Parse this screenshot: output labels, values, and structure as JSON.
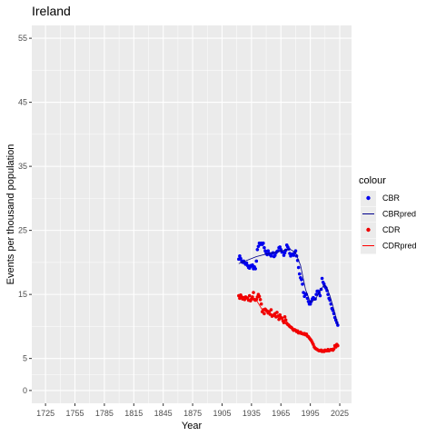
{
  "chart_data": {
    "type": "scatter",
    "title": "Ireland",
    "xlabel": "Year",
    "ylabel": "Events per thousand population",
    "xlim": [
      1711,
      2037
    ],
    "ylim": [
      -2,
      57
    ],
    "xticks": [
      1725,
      1755,
      1785,
      1815,
      1845,
      1875,
      1905,
      1935,
      1965,
      1995,
      2025
    ],
    "yticks": [
      0,
      5,
      15,
      25,
      35,
      45,
      55
    ],
    "grid": true,
    "legend": {
      "title": "colour",
      "position": "right",
      "entries": [
        "CBR",
        "CBRpred",
        "CDR",
        "CDRpred"
      ]
    },
    "series": [
      {
        "name": "CBR",
        "kind": "points",
        "color": "#0000ee",
        "x": [
          1922,
          1923,
          1924,
          1925,
          1926,
          1927,
          1928,
          1929,
          1930,
          1931,
          1932,
          1933,
          1934,
          1935,
          1936,
          1937,
          1938,
          1939,
          1940,
          1941,
          1942,
          1943,
          1944,
          1945,
          1946,
          1947,
          1948,
          1949,
          1950,
          1951,
          1952,
          1953,
          1954,
          1955,
          1956,
          1957,
          1958,
          1959,
          1960,
          1961,
          1962,
          1963,
          1964,
          1965,
          1966,
          1967,
          1968,
          1969,
          1970,
          1971,
          1972,
          1973,
          1974,
          1975,
          1976,
          1977,
          1978,
          1979,
          1980,
          1981,
          1982,
          1983,
          1984,
          1985,
          1986,
          1987,
          1988,
          1989,
          1990,
          1991,
          1992,
          1993,
          1994,
          1995,
          1996,
          1997,
          1998,
          1999,
          2000,
          2001,
          2002,
          2003,
          2004,
          2005,
          2006,
          2007,
          2008,
          2009,
          2010,
          2011,
          2012,
          2013,
          2014,
          2015,
          2016,
          2017,
          2018,
          2019,
          2020,
          2021,
          2022,
          2023
        ],
        "y": [
          20.5,
          21.0,
          20.6,
          20.2,
          20.0,
          20.2,
          19.9,
          19.7,
          19.9,
          19.5,
          19.2,
          19.1,
          19.5,
          19.4,
          19.6,
          19.0,
          19.3,
          19.0,
          20.2,
          22.0,
          22.5,
          23.0,
          22.8,
          23.0,
          22.8,
          23.0,
          22.3,
          21.8,
          21.4,
          21.2,
          21.8,
          21.4,
          21.2,
          21.0,
          21.4,
          21.5,
          20.9,
          21.1,
          21.5,
          21.7,
          21.8,
          22.3,
          22.4,
          22.0,
          21.6,
          21.6,
          21.1,
          21.5,
          21.9,
          22.7,
          22.4,
          22.1,
          21.4,
          21.0,
          21.2,
          21.3,
          21.1,
          21.5,
          21.8,
          21.0,
          20.3,
          19.2,
          18.2,
          17.6,
          17.3,
          16.6,
          15.3,
          14.7,
          15.1,
          15.0,
          14.4,
          13.9,
          13.5,
          13.5,
          13.9,
          14.3,
          14.5,
          14.3,
          14.3,
          15.0,
          15.5,
          15.5,
          15.2,
          14.8,
          15.8,
          17.5,
          16.9,
          16.6,
          16.2,
          16.0,
          15.6,
          15.0,
          14.4,
          14.1,
          13.5,
          12.8,
          12.5,
          12.0,
          11.4,
          11.0,
          10.6,
          10.2
        ]
      },
      {
        "name": "CBRpred",
        "kind": "line",
        "color": "#00008b",
        "x": [
          1922,
          1930,
          1940,
          1950,
          1960,
          1966,
          1970,
          1975,
          1980,
          1985,
          1990,
          1995,
          2000,
          2003,
          2006,
          2009,
          2012,
          2015,
          2018,
          2021,
          2023
        ],
        "y": [
          19.8,
          20.3,
          20.9,
          21.3,
          21.6,
          21.8,
          22.0,
          22.0,
          21.5,
          19.5,
          15.8,
          13.8,
          14.2,
          15.0,
          15.8,
          16.5,
          16.0,
          14.8,
          13.2,
          11.5,
          10.2
        ]
      },
      {
        "name": "CDR",
        "kind": "points",
        "color": "#ee0000",
        "x": [
          1922,
          1923,
          1924,
          1925,
          1926,
          1927,
          1928,
          1929,
          1930,
          1931,
          1932,
          1933,
          1934,
          1935,
          1936,
          1937,
          1938,
          1939,
          1940,
          1941,
          1942,
          1943,
          1944,
          1945,
          1946,
          1947,
          1948,
          1949,
          1950,
          1951,
          1952,
          1953,
          1954,
          1955,
          1956,
          1957,
          1958,
          1959,
          1960,
          1961,
          1962,
          1963,
          1964,
          1965,
          1966,
          1967,
          1968,
          1969,
          1970,
          1971,
          1972,
          1973,
          1974,
          1975,
          1976,
          1977,
          1978,
          1979,
          1980,
          1981,
          1982,
          1983,
          1984,
          1985,
          1986,
          1987,
          1988,
          1989,
          1990,
          1991,
          1992,
          1993,
          1994,
          1995,
          1996,
          1997,
          1998,
          1999,
          2000,
          2001,
          2002,
          2003,
          2004,
          2005,
          2006,
          2007,
          2008,
          2009,
          2010,
          2011,
          2012,
          2013,
          2014,
          2015,
          2016,
          2017,
          2018,
          2019,
          2020,
          2021,
          2022,
          2023
        ],
        "y": [
          14.8,
          14.4,
          14.9,
          14.6,
          14.3,
          14.5,
          14.2,
          14.6,
          14.5,
          14.4,
          14.1,
          14.8,
          14.0,
          14.3,
          14.6,
          15.3,
          14.2,
          14.1,
          14.2,
          14.6,
          15.0,
          14.7,
          14.2,
          13.5,
          12.3,
          12.6,
          12.0,
          12.7,
          12.5,
          12.4,
          12.1,
          12.3,
          11.9,
          12.6,
          11.6,
          11.7,
          11.8,
          12.0,
          11.5,
          12.2,
          11.6,
          11.1,
          11.8,
          11.4,
          11.3,
          10.9,
          10.6,
          11.5,
          11.0,
          10.5,
          10.3,
          10.2,
          10.0,
          9.9,
          9.8,
          9.6,
          9.4,
          9.5,
          9.4,
          9.2,
          9.3,
          9.0,
          9.0,
          9.1,
          8.9,
          8.9,
          8.8,
          8.9,
          8.7,
          8.8,
          8.5,
          8.4,
          8.2,
          8.0,
          7.8,
          7.5,
          7.2,
          6.8,
          6.6,
          6.5,
          6.4,
          6.3,
          6.2,
          6.2,
          6.3,
          6.1,
          6.2,
          6.1,
          6.3,
          6.2,
          6.2,
          6.4,
          6.2,
          6.3,
          6.4,
          6.4,
          6.3,
          6.5,
          7.0,
          6.8,
          7.2,
          7.0
        ]
      },
      {
        "name": "CDRpred",
        "kind": "line",
        "color": "#ff0000",
        "x": [
          1922,
          1930,
          1940,
          1946,
          1955,
          1965,
          1975,
          1985,
          1990,
          1995,
          2000,
          2005,
          2010,
          2015,
          2020,
          2023
        ],
        "y": [
          14.5,
          14.3,
          14.1,
          12.6,
          12.0,
          11.3,
          9.9,
          9.1,
          8.8,
          8.2,
          6.8,
          6.3,
          6.2,
          6.3,
          6.6,
          7.0
        ]
      }
    ]
  }
}
